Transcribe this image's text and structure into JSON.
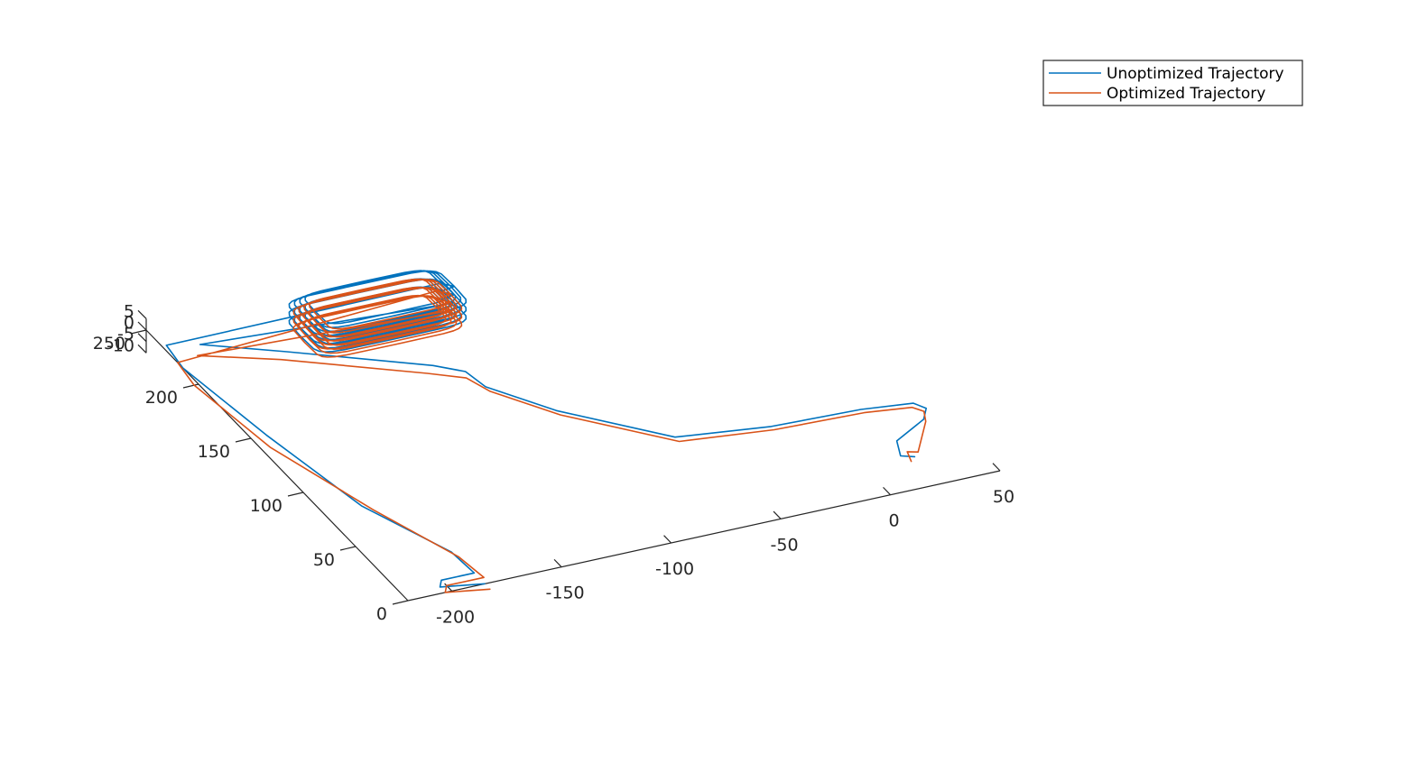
{
  "chart_data": {
    "type": "line",
    "projection": "3d",
    "title": "",
    "xlabel": "",
    "ylabel": "",
    "zlabel": "",
    "xlim": [
      -220,
      50
    ],
    "ylim": [
      0,
      250
    ],
    "zlim": [
      -10,
      5
    ],
    "x_ticks": [
      -200,
      -150,
      -100,
      -50,
      0,
      50
    ],
    "x_tick_labels": [
      "-200",
      "-150",
      "-100",
      "-50",
      "0",
      "50"
    ],
    "y_ticks": [
      0,
      50,
      100,
      150,
      200,
      250
    ],
    "y_tick_labels": [
      "0",
      "50",
      "100",
      "150",
      "200",
      "250"
    ],
    "z_ticks": [
      -10,
      -5,
      0,
      5
    ],
    "z_tick_labels": [
      "-10",
      "-5",
      "0",
      "5"
    ],
    "grid": false,
    "legend_position": "top-right",
    "loop_region": {
      "x_range": [
        -165,
        -95
      ],
      "y_range": [
        200,
        235
      ],
      "loops": 12
    },
    "series": [
      {
        "name": "Unoptimized Trajectory",
        "color": "#0072BD",
        "x": [
          23,
          18,
          22,
          40,
          45,
          42,
          20,
          -20,
          -60,
          -95,
          -113,
          -115,
          -125,
          -175,
          -205,
          -218,
          -220,
          -213,
          -203,
          -186,
          -185,
          -200,
          -203,
          -185,
          -185
        ],
        "y": [
          25,
          28,
          40,
          52,
          60,
          66,
          70,
          72,
          80,
          120,
          150,
          165,
          175,
          210,
          230,
          235,
          215,
          150,
          80,
          30,
          10,
          10,
          5,
          0,
          0
        ],
        "z": [
          0,
          0,
          0,
          0,
          0,
          0,
          0,
          0,
          0,
          0,
          0,
          0,
          0,
          0,
          0,
          0,
          0,
          0,
          0,
          0,
          0,
          0,
          0,
          0,
          0
        ]
      },
      {
        "name": "Optimized Trajectory",
        "color": "#D95319",
        "x": [
          20,
          22,
          26,
          40,
          43,
          40,
          20,
          -20,
          -60,
          -95,
          -113,
          -117,
          -130,
          -180,
          -210,
          -220,
          -222,
          -216,
          -200,
          -185,
          -183,
          -200,
          -203,
          -185,
          -185
        ],
        "y": [
          22,
          30,
          28,
          50,
          58,
          63,
          67,
          69,
          76,
          116,
          146,
          160,
          170,
          205,
          222,
          220,
          200,
          140,
          75,
          25,
          5,
          5,
          0,
          -5,
          -5
        ],
        "z": [
          0,
          0,
          0,
          0,
          0,
          0,
          0,
          0,
          0,
          0,
          0,
          0,
          0,
          0,
          0,
          0,
          0,
          0,
          0,
          0,
          0,
          0,
          0,
          0,
          0
        ]
      }
    ]
  }
}
